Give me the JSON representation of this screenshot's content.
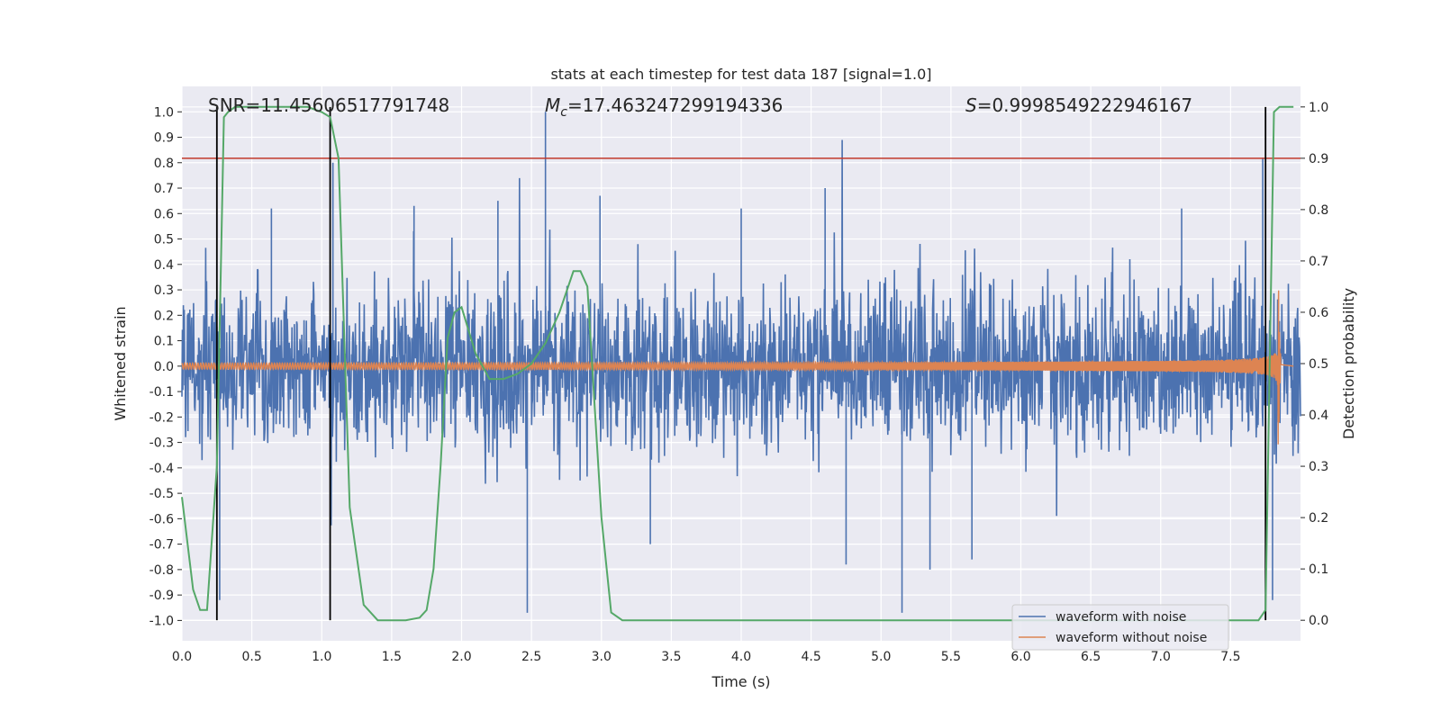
{
  "chart_data": {
    "type": "line",
    "title": "stats at each timestep for test data 187 [signal=1.0]",
    "xlabel": "Time (s)",
    "ylabel_left": "Whitened strain",
    "ylabel_right": "Detection probability",
    "xlim": [
      0.0,
      8.0
    ],
    "ylim_left": [
      -1.08,
      1.1
    ],
    "ylim_right": [
      -0.04,
      1.04
    ],
    "x_ticks": [
      "0.0",
      "0.5",
      "1.0",
      "1.5",
      "2.0",
      "2.5",
      "3.0",
      "3.5",
      "4.0",
      "4.5",
      "5.0",
      "5.5",
      "6.0",
      "6.5",
      "7.0",
      "7.5"
    ],
    "y_ticks_left": [
      "1.0",
      "0.9",
      "0.8",
      "0.7",
      "0.6",
      "0.5",
      "0.4",
      "0.3",
      "0.2",
      "0.1",
      "0.0",
      "-0.1",
      "-0.2",
      "-0.3",
      "-0.4",
      "-0.5",
      "-0.6",
      "-0.7",
      "-0.8",
      "-0.9",
      "-1.0"
    ],
    "y_ticks_right": [
      "1.0",
      "0.9",
      "0.8",
      "0.7",
      "0.6",
      "0.5",
      "0.4",
      "0.3",
      "0.2",
      "0.1",
      "0.0"
    ],
    "grid": true,
    "legend_position": "lower-right",
    "annotations": {
      "snr": "SNR=11.45606517791748",
      "mc_symbol": "M",
      "mc_sub": "c",
      "mc_value": "=17.463247299194336",
      "s_symbol": "S",
      "s_value": "=0.9998549222946167"
    },
    "threshold": {
      "value": 0.9,
      "axis": "right",
      "color": "#c0392b"
    },
    "vertical_markers": [
      0.25,
      1.06,
      7.75
    ],
    "noise": {
      "name": "waveform with noise",
      "color": "#4c72b0",
      "samples": 2400,
      "seed": 187,
      "envelope": 0.22
    },
    "noise_spikes": [
      {
        "x": 0.27,
        "y": -0.92
      },
      {
        "x": 0.64,
        "y": 0.62
      },
      {
        "x": 1.66,
        "y": 0.63
      },
      {
        "x": 2.26,
        "y": 0.65
      },
      {
        "x": 2.47,
        "y": -0.97
      },
      {
        "x": 2.6,
        "y": 1.0
      },
      {
        "x": 2.99,
        "y": 0.67
      },
      {
        "x": 1.08,
        "y": 0.8
      },
      {
        "x": 4.0,
        "y": 0.62
      },
      {
        "x": 4.6,
        "y": 0.7
      },
      {
        "x": 4.75,
        "y": -0.78
      },
      {
        "x": 5.15,
        "y": -0.97
      },
      {
        "x": 5.35,
        "y": -0.8
      },
      {
        "x": 5.65,
        "y": -0.76
      },
      {
        "x": 7.15,
        "y": 0.62
      },
      {
        "x": 7.73,
        "y": 0.82
      },
      {
        "x": 7.8,
        "y": -0.92
      },
      {
        "x": 3.35,
        "y": -0.7
      }
    ],
    "chirp": {
      "name": "waveform without noise",
      "color": "#dd8452",
      "t_merge": 7.84,
      "end": 7.86
    },
    "probability": {
      "name": "detection probability",
      "color": "#55a868",
      "x": [
        0.0,
        0.08,
        0.13,
        0.18,
        0.25,
        0.3,
        0.33,
        0.38,
        0.5,
        0.7,
        0.9,
        1.0,
        1.06,
        1.12,
        1.2,
        1.3,
        1.4,
        1.5,
        1.6,
        1.7,
        1.75,
        1.8,
        1.85,
        1.9,
        1.95,
        2.0,
        2.1,
        2.2,
        2.3,
        2.4,
        2.5,
        2.6,
        2.7,
        2.8,
        2.85,
        2.9,
        3.0,
        3.07,
        3.15,
        3.5,
        4.0,
        5.0,
        6.0,
        7.0,
        7.7,
        7.75,
        7.78,
        7.81,
        7.85,
        7.9,
        7.95
      ],
      "y": [
        0.24,
        0.06,
        0.02,
        0.02,
        0.3,
        0.98,
        0.99,
        1.0,
        1.0,
        1.0,
        1.0,
        0.99,
        0.98,
        0.9,
        0.22,
        0.03,
        0.0,
        0.0,
        0.0,
        0.005,
        0.02,
        0.1,
        0.3,
        0.55,
        0.6,
        0.61,
        0.52,
        0.47,
        0.47,
        0.48,
        0.5,
        0.54,
        0.6,
        0.68,
        0.68,
        0.65,
        0.2,
        0.015,
        0.0,
        0.0,
        0.0,
        0.0,
        0.0,
        0.0,
        0.0,
        0.02,
        0.5,
        0.99,
        1.0,
        1.0,
        1.0
      ]
    },
    "legend": [
      "waveform with noise",
      "waveform without noise"
    ]
  }
}
